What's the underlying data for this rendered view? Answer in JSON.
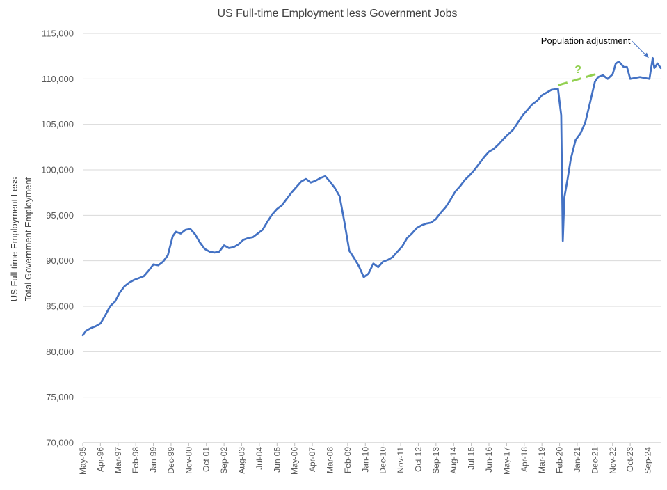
{
  "chart_data": {
    "type": "line",
    "title": "US Full-time Employment less Government Jobs",
    "ylabel_lines": [
      "US Full-time Employment Less",
      "Total Government Employment"
    ],
    "xlabel": "",
    "ylim": [
      70000,
      115000
    ],
    "y_ticks": [
      70000,
      75000,
      80000,
      85000,
      90000,
      95000,
      100000,
      105000,
      110000,
      115000
    ],
    "y_tick_labels": [
      "70,000",
      "75,000",
      "80,000",
      "85,000",
      "90,000",
      "95,000",
      "100,000",
      "105,000",
      "110,000",
      "115,000"
    ],
    "x_start": "1995-05",
    "x_end": "2025-05",
    "x_tick_labels": [
      "May-95",
      "Apr-96",
      "Mar-97",
      "Feb-98",
      "Jan-99",
      "Dec-99",
      "Nov-00",
      "Oct-01",
      "Sep-02",
      "Aug-03",
      "Jul-04",
      "Jun-05",
      "May-06",
      "Apr-07",
      "Mar-08",
      "Feb-09",
      "Jan-10",
      "Dec-10",
      "Nov-11",
      "Oct-12",
      "Sep-13",
      "Aug-14",
      "Jul-15",
      "Jun-16",
      "May-17",
      "Apr-18",
      "Mar-19",
      "Feb-20",
      "Jan-21",
      "Dec-21",
      "Nov-22",
      "Oct-23",
      "Sep-24"
    ],
    "grid": true,
    "legend": "none",
    "series_color": "#4472c4",
    "series": [
      {
        "points": [
          [
            "1995-05",
            81800
          ],
          [
            "1995-07",
            82300
          ],
          [
            "1995-10",
            82600
          ],
          [
            "1996-01",
            82800
          ],
          [
            "1996-04",
            83100
          ],
          [
            "1996-07",
            84000
          ],
          [
            "1996-10",
            85000
          ],
          [
            "1997-01",
            85500
          ],
          [
            "1997-04",
            86500
          ],
          [
            "1997-07",
            87200
          ],
          [
            "1997-10",
            87600
          ],
          [
            "1998-01",
            87900
          ],
          [
            "1998-04",
            88100
          ],
          [
            "1998-07",
            88300
          ],
          [
            "1998-10",
            88900
          ],
          [
            "1999-01",
            89600
          ],
          [
            "1999-04",
            89500
          ],
          [
            "1999-07",
            89900
          ],
          [
            "1999-10",
            90600
          ],
          [
            "2000-01",
            92700
          ],
          [
            "2000-03",
            93200
          ],
          [
            "2000-06",
            93000
          ],
          [
            "2000-09",
            93400
          ],
          [
            "2000-12",
            93500
          ],
          [
            "2001-03",
            92900
          ],
          [
            "2001-06",
            92000
          ],
          [
            "2001-09",
            91300
          ],
          [
            "2001-12",
            91000
          ],
          [
            "2002-03",
            90900
          ],
          [
            "2002-06",
            91000
          ],
          [
            "2002-09",
            91700
          ],
          [
            "2002-12",
            91400
          ],
          [
            "2003-03",
            91500
          ],
          [
            "2003-06",
            91800
          ],
          [
            "2003-09",
            92300
          ],
          [
            "2003-12",
            92500
          ],
          [
            "2004-03",
            92600
          ],
          [
            "2004-06",
            93000
          ],
          [
            "2004-09",
            93400
          ],
          [
            "2004-12",
            94300
          ],
          [
            "2005-03",
            95100
          ],
          [
            "2005-06",
            95700
          ],
          [
            "2005-09",
            96100
          ],
          [
            "2005-12",
            96800
          ],
          [
            "2006-03",
            97500
          ],
          [
            "2006-06",
            98100
          ],
          [
            "2006-09",
            98700
          ],
          [
            "2006-12",
            99000
          ],
          [
            "2007-03",
            98600
          ],
          [
            "2007-06",
            98800
          ],
          [
            "2007-09",
            99100
          ],
          [
            "2007-12",
            99300
          ],
          [
            "2008-03",
            98700
          ],
          [
            "2008-06",
            98000
          ],
          [
            "2008-09",
            97100
          ],
          [
            "2008-12",
            94200
          ],
          [
            "2009-03",
            91100
          ],
          [
            "2009-06",
            90300
          ],
          [
            "2009-09",
            89400
          ],
          [
            "2009-12",
            88200
          ],
          [
            "2010-03",
            88600
          ],
          [
            "2010-06",
            89700
          ],
          [
            "2010-09",
            89300
          ],
          [
            "2010-12",
            89900
          ],
          [
            "2011-03",
            90100
          ],
          [
            "2011-06",
            90400
          ],
          [
            "2011-09",
            91000
          ],
          [
            "2011-12",
            91600
          ],
          [
            "2012-03",
            92500
          ],
          [
            "2012-06",
            93000
          ],
          [
            "2012-09",
            93600
          ],
          [
            "2012-12",
            93900
          ],
          [
            "2013-03",
            94100
          ],
          [
            "2013-06",
            94200
          ],
          [
            "2013-09",
            94600
          ],
          [
            "2013-12",
            95300
          ],
          [
            "2014-03",
            95900
          ],
          [
            "2014-06",
            96700
          ],
          [
            "2014-09",
            97600
          ],
          [
            "2014-12",
            98200
          ],
          [
            "2015-03",
            98900
          ],
          [
            "2015-06",
            99400
          ],
          [
            "2015-09",
            100000
          ],
          [
            "2015-12",
            100700
          ],
          [
            "2016-03",
            101400
          ],
          [
            "2016-06",
            102000
          ],
          [
            "2016-09",
            102300
          ],
          [
            "2016-12",
            102800
          ],
          [
            "2017-03",
            103400
          ],
          [
            "2017-06",
            103900
          ],
          [
            "2017-09",
            104400
          ],
          [
            "2017-12",
            105200
          ],
          [
            "2018-03",
            106000
          ],
          [
            "2018-06",
            106600
          ],
          [
            "2018-09",
            107200
          ],
          [
            "2018-12",
            107600
          ],
          [
            "2019-03",
            108200
          ],
          [
            "2019-06",
            108500
          ],
          [
            "2019-09",
            108800
          ],
          [
            "2020-01",
            108900
          ],
          [
            "2020-03",
            106000
          ],
          [
            "2020-04",
            92200
          ],
          [
            "2020-05",
            97000
          ],
          [
            "2020-07",
            99000
          ],
          [
            "2020-09",
            101200
          ],
          [
            "2020-12",
            103300
          ],
          [
            "2021-03",
            104000
          ],
          [
            "2021-06",
            105200
          ],
          [
            "2021-09",
            107400
          ],
          [
            "2021-12",
            109700
          ],
          [
            "2022-02",
            110200
          ],
          [
            "2022-05",
            110400
          ],
          [
            "2022-08",
            110000
          ],
          [
            "2022-11",
            110500
          ],
          [
            "2023-01",
            111700
          ],
          [
            "2023-03",
            111900
          ],
          [
            "2023-06",
            111300
          ],
          [
            "2023-08",
            111300
          ],
          [
            "2023-10",
            110000
          ],
          [
            "2024-01",
            110100
          ],
          [
            "2024-04",
            110200
          ],
          [
            "2024-07",
            110100
          ],
          [
            "2024-10",
            110000
          ],
          [
            "2024-12",
            112300
          ],
          [
            "2025-01",
            111200
          ],
          [
            "2025-03",
            111700
          ],
          [
            "2025-05",
            111200
          ]
        ]
      }
    ],
    "trend_line": {
      "color": "#92d050",
      "from": [
        "2020-01",
        109300
      ],
      "to": [
        "2022-02",
        110600
      ]
    },
    "annotations": {
      "question": "?",
      "population_label": "Population adjustment",
      "population_target": [
        "2024-12",
        112100
      ]
    }
  }
}
